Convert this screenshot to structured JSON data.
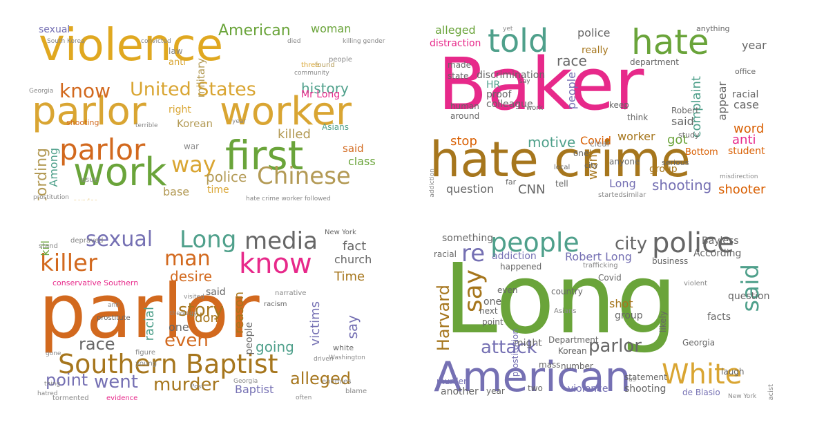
{
  "clouds": [
    {
      "name": "cloud-top-left",
      "words": [
        {
          "text": "violence",
          "color": "#e0a820"
        },
        {
          "text": "parlor",
          "color": "#d9a532"
        },
        {
          "text": "worker",
          "color": "#d9a532"
        },
        {
          "text": "first",
          "color": "#6aa43a"
        },
        {
          "text": "work",
          "color": "#6aa43a"
        },
        {
          "text": "parlor",
          "color": "#d2691e"
        },
        {
          "text": "Chinese",
          "color": "#b39a55"
        },
        {
          "text": "United States",
          "color": "#d9a532"
        },
        {
          "text": "American",
          "color": "#6aa43a"
        },
        {
          "text": "way",
          "color": "#d9a532"
        },
        {
          "text": "know",
          "color": "#d2691e"
        },
        {
          "text": "history",
          "color": "#4fa08b"
        },
        {
          "text": "woman",
          "color": "#6aa43a"
        },
        {
          "text": "killed",
          "color": "#b39a55"
        },
        {
          "text": "according",
          "color": "#b39a55"
        },
        {
          "text": "Among",
          "color": "#4fa08b"
        },
        {
          "text": "military",
          "color": "#b39a55"
        },
        {
          "text": "police",
          "color": "#b39a55"
        },
        {
          "text": "time",
          "color": "#d9a532"
        },
        {
          "text": "Korean",
          "color": "#b39a55"
        },
        {
          "text": "sexual",
          "color": "#7570b3"
        },
        {
          "text": "class",
          "color": "#6aa43a"
        },
        {
          "text": "said",
          "color": "#d2691e"
        },
        {
          "text": "base",
          "color": "#b39a55"
        },
        {
          "text": "right",
          "color": "#d9a532"
        },
        {
          "text": "anti",
          "color": "#d9a532"
        },
        {
          "text": "law",
          "color": "#888888"
        },
        {
          "text": "war",
          "color": "#888888"
        },
        {
          "text": "Mr Long",
          "color": "#e7298a"
        },
        {
          "text": "Asians",
          "color": "#4fa08b"
        },
        {
          "text": "shooting",
          "color": "#d2691e"
        },
        {
          "text": "service",
          "color": "#d9a532"
        },
        {
          "text": "prostitution",
          "color": "#888888"
        },
        {
          "text": "hate crime worker followed",
          "color": "#888888"
        },
        {
          "text": "killing gender immigration",
          "color": "#888888"
        },
        {
          "text": "South Korea",
          "color": "#888888"
        },
        {
          "text": "community",
          "color": "#888888"
        },
        {
          "text": "Georgia",
          "color": "#888888"
        },
        {
          "text": "people",
          "color": "#888888"
        },
        {
          "text": "three",
          "color": "#d9a532"
        },
        {
          "text": "found",
          "color": "#b39a55"
        },
        {
          "text": "year",
          "color": "#888888"
        },
        {
          "text": "terrible",
          "color": "#888888"
        },
        {
          "text": "issue",
          "color": "#888888"
        },
        {
          "text": "convicted",
          "color": "#888888"
        },
        {
          "text": "died",
          "color": "#888888"
        },
        {
          "text": "event",
          "color": "#888888"
        }
      ]
    },
    {
      "name": "cloud-top-right",
      "words": [
        {
          "text": "Baker",
          "color": "#e7298a"
        },
        {
          "text": "hate crime",
          "color": "#a6761d"
        },
        {
          "text": "told",
          "color": "#4fa08b"
        },
        {
          "text": "hate",
          "color": "#6aa43a"
        },
        {
          "text": "police",
          "color": "#666666"
        },
        {
          "text": "alleged",
          "color": "#6aa43a"
        },
        {
          "text": "distraction",
          "color": "#e7298a"
        },
        {
          "text": "discrimination",
          "color": "#666666"
        },
        {
          "text": "race",
          "color": "#666666"
        },
        {
          "text": "year",
          "color": "#666666"
        },
        {
          "text": "stop",
          "color": "#d95f02"
        },
        {
          "text": "motive",
          "color": "#4fa08b"
        },
        {
          "text": "Covid",
          "color": "#d95f02"
        },
        {
          "text": "worker",
          "color": "#a6761d"
        },
        {
          "text": "got",
          "color": "#6aa43a"
        },
        {
          "text": "anti",
          "color": "#e7298a"
        },
        {
          "text": "complaint",
          "color": "#4fa08b"
        },
        {
          "text": "appear",
          "color": "#666666"
        },
        {
          "text": "word",
          "color": "#d95f02"
        },
        {
          "text": "case",
          "color": "#666666"
        },
        {
          "text": "student",
          "color": "#d95f02"
        },
        {
          "text": "said",
          "color": "#666666"
        },
        {
          "text": "shooting",
          "color": "#7570b3"
        },
        {
          "text": "shooter",
          "color": "#d95f02"
        },
        {
          "text": "question",
          "color": "#666666"
        },
        {
          "text": "CNN",
          "color": "#666666"
        },
        {
          "text": "want",
          "color": "#a6761d"
        },
        {
          "text": "Long",
          "color": "#7570b3"
        },
        {
          "text": "HR",
          "color": "#4fa08b"
        },
        {
          "text": "people",
          "color": "#7570b3"
        },
        {
          "text": "proof",
          "color": "#666666"
        },
        {
          "text": "colleague",
          "color": "#666666"
        },
        {
          "text": "group",
          "color": "#a6761d"
        },
        {
          "text": "keep",
          "color": "#666666"
        },
        {
          "text": "really",
          "color": "#a6761d"
        },
        {
          "text": "Robert",
          "color": "#666666"
        },
        {
          "text": "racial",
          "color": "#666666"
        },
        {
          "text": "office",
          "color": "#666666"
        },
        {
          "text": "anything",
          "color": "#666666"
        },
        {
          "text": "made",
          "color": "#666666"
        },
        {
          "text": "state",
          "color": "#666666"
        },
        {
          "text": "human",
          "color": "#666666"
        },
        {
          "text": "around",
          "color": "#666666"
        },
        {
          "text": "addiction",
          "color": "#888888"
        },
        {
          "text": "tell",
          "color": "#666666"
        },
        {
          "text": "far",
          "color": "#666666"
        },
        {
          "text": "anyone",
          "color": "#666666"
        },
        {
          "text": "Bottom",
          "color": "#d95f02"
        },
        {
          "text": "serious",
          "color": "#666666"
        },
        {
          "text": "department",
          "color": "#666666"
        },
        {
          "text": "think",
          "color": "#666666"
        },
        {
          "text": "study",
          "color": "#666666"
        },
        {
          "text": "city",
          "color": "#666666"
        },
        {
          "text": "startedsimilar",
          "color": "#888888"
        },
        {
          "text": "misdirection",
          "color": "#888888"
        },
        {
          "text": "local",
          "color": "#666666"
        },
        {
          "text": "clear",
          "color": "#888888"
        },
        {
          "text": "one",
          "color": "#666666"
        },
        {
          "text": "work",
          "color": "#666666"
        },
        {
          "text": "say",
          "color": "#666666"
        },
        {
          "text": "yet",
          "color": "#888888"
        },
        {
          "text": "Wednesday",
          "color": "#888888"
        }
      ]
    },
    {
      "name": "cloud-bottom-left",
      "words": [
        {
          "text": "parlor",
          "color": "#d2691e"
        },
        {
          "text": "Southern Baptist",
          "color": "#a6761d"
        },
        {
          "text": "killer",
          "color": "#d2691e"
        },
        {
          "text": "know",
          "color": "#e7298a"
        },
        {
          "text": "media",
          "color": "#666666"
        },
        {
          "text": "Long",
          "color": "#4fa08b"
        },
        {
          "text": "sexual",
          "color": "#7570b3"
        },
        {
          "text": "man",
          "color": "#d2691e"
        },
        {
          "text": "desire",
          "color": "#d2691e"
        },
        {
          "text": "story",
          "color": "#a6761d"
        },
        {
          "text": "even",
          "color": "#d2691e"
        },
        {
          "text": "murder",
          "color": "#a6761d"
        },
        {
          "text": "went",
          "color": "#7570b3"
        },
        {
          "text": "point",
          "color": "#7570b3"
        },
        {
          "text": "race",
          "color": "#666666"
        },
        {
          "text": "alleged",
          "color": "#a6761d"
        },
        {
          "text": "going",
          "color": "#4fa08b"
        },
        {
          "text": "fact",
          "color": "#666666"
        },
        {
          "text": "church",
          "color": "#666666"
        },
        {
          "text": "Time",
          "color": "#a6761d"
        },
        {
          "text": "victims",
          "color": "#7570b3"
        },
        {
          "text": "say",
          "color": "#7570b3"
        },
        {
          "text": "reason",
          "color": "#a6761d"
        },
        {
          "text": "people",
          "color": "#666666"
        },
        {
          "text": "racial",
          "color": "#4fa08b"
        },
        {
          "text": "one",
          "color": "#666666"
        },
        {
          "text": "don",
          "color": "#a6761d"
        },
        {
          "text": "said",
          "color": "#666666"
        },
        {
          "text": "kill",
          "color": "#6aa43a"
        },
        {
          "text": "Baptist",
          "color": "#7570b3"
        },
        {
          "text": "conservative Southern",
          "color": "#e7298a"
        },
        {
          "text": "New York",
          "color": "#666666"
        },
        {
          "text": "prostitute",
          "color": "#666666"
        },
        {
          "text": "racism",
          "color": "#666666"
        },
        {
          "text": "narrative",
          "color": "#888888"
        },
        {
          "text": "theology",
          "color": "#888888"
        },
        {
          "text": "white",
          "color": "#666666"
        },
        {
          "text": "figure",
          "color": "#888888"
        },
        {
          "text": "young",
          "color": "#888888"
        },
        {
          "text": "enemies",
          "color": "#888888"
        },
        {
          "text": "blame",
          "color": "#888888"
        },
        {
          "text": "tormented",
          "color": "#888888"
        },
        {
          "text": "evidence",
          "color": "#e7298a"
        },
        {
          "text": "often",
          "color": "#888888"
        },
        {
          "text": "stand",
          "color": "#888888"
        },
        {
          "text": "gone",
          "color": "#888888"
        },
        {
          "text": "thing",
          "color": "#888888"
        },
        {
          "text": "hatred",
          "color": "#888888"
        },
        {
          "text": "depraved",
          "color": "#888888"
        },
        {
          "text": "visited",
          "color": "#888888"
        },
        {
          "text": "Georgia",
          "color": "#888888"
        },
        {
          "text": "Washington",
          "color": "#888888"
        },
        {
          "text": "anti",
          "color": "#888888"
        },
        {
          "text": "Post",
          "color": "#888888"
        },
        {
          "text": "driven",
          "color": "#888888"
        }
      ]
    },
    {
      "name": "cloud-bottom-right",
      "words": [
        {
          "text": "Long",
          "color": "#6aa43a"
        },
        {
          "text": "American",
          "color": "#7570b3"
        },
        {
          "text": "people",
          "color": "#4fa08b"
        },
        {
          "text": "police",
          "color": "#666666"
        },
        {
          "text": "city",
          "color": "#666666"
        },
        {
          "text": "say",
          "color": "#a6761d"
        },
        {
          "text": "re",
          "color": "#7570b3"
        },
        {
          "text": "said",
          "color": "#4fa08b"
        },
        {
          "text": "White",
          "color": "#d9a532"
        },
        {
          "text": "attack",
          "color": "#7570b3"
        },
        {
          "text": "parlor",
          "color": "#666666"
        },
        {
          "text": "Harvard",
          "color": "#a6761d"
        },
        {
          "text": "Robert Long",
          "color": "#7570b3"
        },
        {
          "text": "something",
          "color": "#666666"
        },
        {
          "text": "addiction",
          "color": "#7570b3"
        },
        {
          "text": "According",
          "color": "#666666"
        },
        {
          "text": "Bayless",
          "color": "#666666"
        },
        {
          "text": "business",
          "color": "#666666"
        },
        {
          "text": "Department",
          "color": "#666666"
        },
        {
          "text": "Korean",
          "color": "#666666"
        },
        {
          "text": "might",
          "color": "#666666"
        },
        {
          "text": "violence",
          "color": "#7570b3"
        },
        {
          "text": "shooting",
          "color": "#666666"
        },
        {
          "text": "statement",
          "color": "#666666"
        },
        {
          "text": "group",
          "color": "#666666"
        },
        {
          "text": "shot",
          "color": "#a6761d"
        },
        {
          "text": "Covid",
          "color": "#666666"
        },
        {
          "text": "likely",
          "color": "#666666"
        },
        {
          "text": "question",
          "color": "#666666"
        },
        {
          "text": "facts",
          "color": "#666666"
        },
        {
          "text": "Georgia",
          "color": "#666666"
        },
        {
          "text": "laugh",
          "color": "#666666"
        },
        {
          "text": "one",
          "color": "#666666"
        },
        {
          "text": "next",
          "color": "#666666"
        },
        {
          "text": "point",
          "color": "#666666"
        },
        {
          "text": "even",
          "color": "#666666"
        },
        {
          "text": "country",
          "color": "#666666"
        },
        {
          "text": "murder",
          "color": "#7570b3"
        },
        {
          "text": "mass",
          "color": "#666666"
        },
        {
          "text": "number",
          "color": "#666666"
        },
        {
          "text": "another",
          "color": "#666666"
        },
        {
          "text": "year",
          "color": "#666666"
        },
        {
          "text": "two",
          "color": "#666666"
        },
        {
          "text": "de Blasio",
          "color": "#7570b3"
        },
        {
          "text": "prostitution",
          "color": "#7570b3"
        },
        {
          "text": "racial",
          "color": "#666666"
        },
        {
          "text": "happened",
          "color": "#666666"
        },
        {
          "text": "trafficking",
          "color": "#888888"
        },
        {
          "text": "Asians",
          "color": "#888888"
        },
        {
          "text": "white supremacist",
          "color": "#888888"
        },
        {
          "text": "violent",
          "color": "#888888"
        },
        {
          "text": "New York",
          "color": "#888888"
        },
        {
          "text": "us",
          "color": "#888888"
        }
      ]
    }
  ]
}
